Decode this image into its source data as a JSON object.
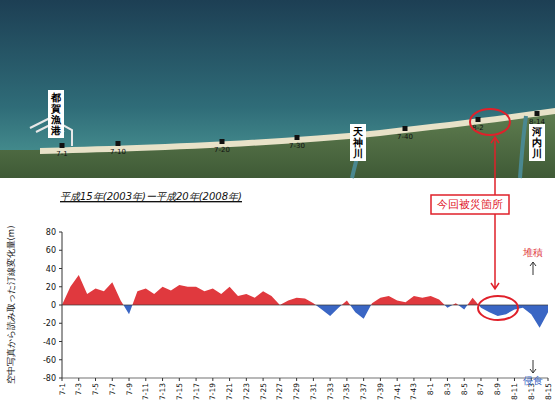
{
  "chart_data": {
    "type": "area",
    "title": "平成15年(2003年)ー平成20年(2008年)",
    "y_label": "空中写真から読み取った汀線変化量(m)",
    "categories": [
      "7-1",
      null,
      "7-3",
      null,
      "7-5",
      null,
      "7-7",
      null,
      "7-9",
      null,
      "7-11",
      null,
      "7-13",
      null,
      "7-15",
      null,
      "7-17",
      null,
      "7-19",
      null,
      "7-21",
      null,
      "7-23",
      null,
      "7-25",
      null,
      "7-27",
      null,
      "7-29",
      null,
      "7-31",
      null,
      "7-33",
      null,
      "7-35",
      null,
      "7-37",
      null,
      "7-39",
      null,
      "7-41",
      null,
      "7-43",
      null,
      "8-1",
      null,
      "8-3",
      null,
      "8-5",
      null,
      "8-7",
      null,
      "8-9",
      null,
      "8-11",
      null,
      "8-13",
      null,
      "8-15"
    ],
    "values": [
      0,
      20,
      33,
      12,
      18,
      15,
      25,
      5,
      -10,
      15,
      18,
      12,
      20,
      16,
      22,
      20,
      20,
      15,
      18,
      12,
      20,
      10,
      12,
      8,
      15,
      10,
      0,
      5,
      8,
      7,
      2,
      -5,
      -12,
      -3,
      5,
      -8,
      -15,
      2,
      8,
      10,
      5,
      3,
      10,
      8,
      10,
      6,
      -3,
      2,
      -5,
      8,
      -3,
      -8,
      -12,
      -10,
      -5,
      -3,
      -10,
      -25,
      -8
    ],
    "colors": [
      "#e0393e",
      "#3a66c4"
    ],
    "ylim": [
      -80,
      80
    ],
    "yticks": [
      -80,
      -60,
      -40,
      -20,
      0,
      20,
      40,
      60,
      80
    ],
    "grid": false,
    "annotations": {
      "deposit": "堆積",
      "erosion": "侵食",
      "site": "今回被災箇所"
    }
  },
  "photo": {
    "labels": [
      "都賀漁港",
      "天神川",
      "河内川"
    ],
    "points": [
      "7-1",
      "7-10",
      "7-20",
      "7-30",
      "7-40",
      "8-2",
      "8-14"
    ]
  }
}
